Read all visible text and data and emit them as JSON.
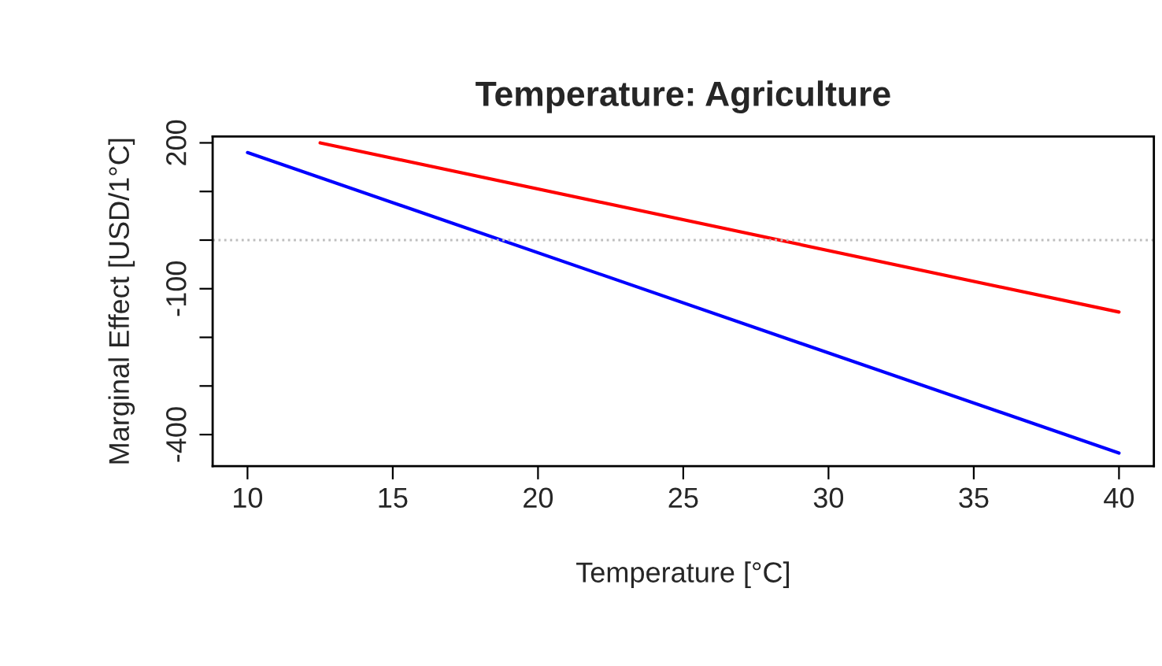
{
  "chart_data": {
    "type": "line",
    "title": "Temperature: Agriculture",
    "xlabel": "Temperature [°C]",
    "ylabel": "Marginal Effect [USD/1°C]",
    "series": [
      {
        "color": "#ff0000",
        "x": [
          12.5,
          40
        ],
        "values": [
          200,
          -148
        ]
      },
      {
        "color": "#0000ff",
        "x": [
          10,
          40
        ],
        "values": [
          180,
          -438
        ]
      }
    ],
    "xlim": [
      8.8,
      41.2
    ],
    "ylim": [
      -465,
      213
    ],
    "xticks": [
      10,
      15,
      20,
      25,
      30,
      35,
      40
    ],
    "yticks": [
      200,
      {
        "value": 100,
        "label": null
      },
      {
        "value": 0,
        "label": null
      },
      -100,
      {
        "value": -200,
        "label": null
      },
      {
        "value": -300,
        "label": null
      },
      -400
    ],
    "ref_lines": [
      {
        "axis": "y",
        "value": 0,
        "color": "#bebebe",
        "line_style": "dotted"
      }
    ],
    "grid": false,
    "legend": false,
    "marker": "none",
    "line_style": "solid"
  }
}
